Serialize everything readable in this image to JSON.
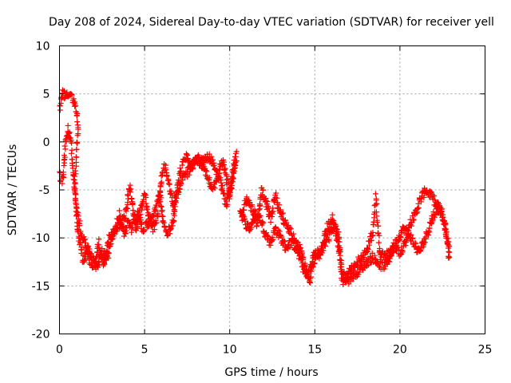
{
  "chart_data": {
    "type": "scatter",
    "title": "Day 208 of 2024, Sidereal Day-to-day VTEC variation (SDTVAR) for receiver yell",
    "xlabel": "GPS time / hours",
    "ylabel": "SDTVAR / TECUs",
    "xlim": [
      0,
      25
    ],
    "ylim": [
      -20,
      10
    ],
    "xticks": [
      0,
      5,
      10,
      15,
      20,
      25
    ],
    "yticks": [
      -20,
      -15,
      -10,
      -5,
      0,
      5,
      10
    ],
    "xtick_labels": [
      "0",
      "5",
      "10",
      "15",
      "20",
      "25"
    ],
    "ytick_labels": [
      "-20",
      "-15",
      "-10",
      "-5",
      "0",
      "5",
      "10"
    ],
    "grid": true,
    "marker": "+",
    "color": "#ff0000",
    "series": [
      {
        "name": "SDTVAR",
        "control_points": [
          [
            0.0,
            3.4
          ],
          [
            0.2,
            5.0
          ],
          [
            0.5,
            4.8
          ],
          [
            0.8,
            4.5
          ],
          [
            1.0,
            3.2
          ],
          [
            1.1,
            1.5
          ],
          [
            1.0,
            -1.0
          ],
          [
            0.9,
            -4.0
          ],
          [
            1.0,
            -8.0
          ],
          [
            1.1,
            -9.5
          ],
          [
            1.4,
            -12.5
          ],
          [
            1.6,
            -11.0
          ],
          [
            1.9,
            -11.8
          ],
          [
            2.1,
            -12.5
          ],
          [
            2.3,
            -10.5
          ],
          [
            2.6,
            -13.0
          ],
          [
            2.9,
            -10.0
          ],
          [
            3.2,
            -9.5
          ],
          [
            3.6,
            -8.5
          ],
          [
            3.9,
            -7.5
          ],
          [
            4.1,
            -4.5
          ],
          [
            4.3,
            -6.5
          ],
          [
            4.5,
            -9.0
          ],
          [
            4.8,
            -7.0
          ],
          [
            5.0,
            -5.5
          ],
          [
            5.2,
            -7.5
          ],
          [
            5.5,
            -9.0
          ],
          [
            5.8,
            -7.5
          ],
          [
            6.0,
            -3.5
          ],
          [
            6.2,
            -2.5
          ],
          [
            6.5,
            -5.0
          ],
          [
            6.7,
            -6.5
          ],
          [
            7.0,
            -4.0
          ],
          [
            7.2,
            -2.5
          ],
          [
            7.5,
            -1.5
          ],
          [
            7.8,
            -2.5
          ],
          [
            8.1,
            -1.5
          ],
          [
            8.4,
            -2.5
          ],
          [
            8.7,
            -3.5
          ],
          [
            9.0,
            -5.0
          ],
          [
            9.3,
            -3.5
          ],
          [
            9.6,
            -2.0
          ],
          [
            9.8,
            -3.5
          ],
          [
            10.0,
            -5.5
          ],
          [
            10.2,
            -3.0
          ],
          [
            10.4,
            -1.0
          ]
        ],
        "control_points_2": [
          [
            0.0,
            -3.5
          ],
          [
            0.2,
            -4.0
          ],
          [
            0.3,
            -1.0
          ],
          [
            0.5,
            1.5
          ],
          [
            0.7,
            -0.5
          ],
          [
            0.8,
            -3.5
          ],
          [
            1.0,
            -6.5
          ],
          [
            1.2,
            -9.0
          ],
          [
            1.5,
            -10.5
          ],
          [
            1.8,
            -12.5
          ],
          [
            2.2,
            -13.0
          ],
          [
            2.5,
            -11.5
          ],
          [
            2.8,
            -12.0
          ],
          [
            3.0,
            -10.5
          ],
          [
            3.3,
            -9.0
          ],
          [
            3.5,
            -7.5
          ],
          [
            3.8,
            -9.5
          ],
          [
            4.0,
            -8.5
          ],
          [
            4.2,
            -9.0
          ],
          [
            4.6,
            -7.5
          ],
          [
            4.9,
            -9.0
          ],
          [
            5.2,
            -8.5
          ],
          [
            5.5,
            -8.0
          ],
          [
            5.7,
            -6.5
          ],
          [
            5.9,
            -5.5
          ],
          [
            6.1,
            -8.5
          ],
          [
            6.3,
            -9.5
          ],
          [
            6.6,
            -9.0
          ],
          [
            6.9,
            -5.5
          ],
          [
            7.2,
            -4.0
          ],
          [
            7.6,
            -3.0
          ],
          [
            8.0,
            -2.0
          ],
          [
            8.4,
            -2.0
          ],
          [
            8.8,
            -1.5
          ],
          [
            9.2,
            -3.0
          ],
          [
            9.5,
            -4.5
          ],
          [
            9.8,
            -6.5
          ],
          [
            10.1,
            -4.5
          ],
          [
            10.4,
            -2.0
          ]
        ],
        "control_points_3": [
          [
            10.7,
            -7.5
          ],
          [
            11.0,
            -6.0
          ],
          [
            11.3,
            -7.0
          ],
          [
            11.6,
            -8.5
          ],
          [
            11.9,
            -5.0
          ],
          [
            12.1,
            -6.0
          ],
          [
            12.4,
            -8.0
          ],
          [
            12.7,
            -5.5
          ],
          [
            13.0,
            -7.5
          ],
          [
            13.3,
            -8.5
          ],
          [
            13.6,
            -9.5
          ],
          [
            13.9,
            -10.5
          ],
          [
            14.2,
            -11.5
          ],
          [
            14.5,
            -13.5
          ],
          [
            14.7,
            -14.5
          ],
          [
            14.9,
            -12.0
          ],
          [
            15.2,
            -11.5
          ],
          [
            15.5,
            -11.0
          ],
          [
            15.8,
            -10.0
          ],
          [
            16.1,
            -8.5
          ],
          [
            16.4,
            -9.5
          ],
          [
            16.6,
            -14.5
          ],
          [
            16.9,
            -14.0
          ],
          [
            17.2,
            -13.0
          ],
          [
            17.5,
            -12.5
          ],
          [
            17.8,
            -12.0
          ],
          [
            18.1,
            -11.0
          ],
          [
            18.4,
            -9.5
          ],
          [
            18.6,
            -5.8
          ],
          [
            18.8,
            -11.5
          ],
          [
            19.1,
            -12.0
          ],
          [
            19.4,
            -11.5
          ],
          [
            19.7,
            -11.0
          ],
          [
            20.0,
            -11.5
          ],
          [
            20.3,
            -10.5
          ],
          [
            20.6,
            -8.5
          ],
          [
            20.9,
            -7.5
          ],
          [
            21.2,
            -6.0
          ],
          [
            21.5,
            -5.0
          ],
          [
            21.8,
            -5.5
          ],
          [
            22.1,
            -6.5
          ],
          [
            22.4,
            -7.0
          ],
          [
            22.7,
            -9.5
          ],
          [
            22.9,
            -12.0
          ]
        ],
        "control_points_4": [
          [
            10.6,
            -7.0
          ],
          [
            10.9,
            -8.5
          ],
          [
            11.2,
            -9.0
          ],
          [
            11.5,
            -7.5
          ],
          [
            11.8,
            -8.0
          ],
          [
            12.1,
            -9.5
          ],
          [
            12.4,
            -10.5
          ],
          [
            12.7,
            -9.0
          ],
          [
            13.0,
            -10.0
          ],
          [
            13.3,
            -11.0
          ],
          [
            13.6,
            -10.5
          ],
          [
            13.9,
            -11.0
          ],
          [
            14.2,
            -12.5
          ],
          [
            14.5,
            -14.0
          ],
          [
            14.8,
            -13.0
          ],
          [
            15.1,
            -12.0
          ],
          [
            15.4,
            -11.5
          ],
          [
            15.7,
            -9.0
          ],
          [
            16.0,
            -8.0
          ],
          [
            16.3,
            -10.0
          ],
          [
            16.6,
            -13.5
          ],
          [
            16.9,
            -14.5
          ],
          [
            17.2,
            -14.0
          ],
          [
            17.5,
            -13.5
          ],
          [
            17.8,
            -13.0
          ],
          [
            18.1,
            -12.5
          ],
          [
            18.4,
            -12.0
          ],
          [
            18.7,
            -12.5
          ],
          [
            19.0,
            -13.0
          ],
          [
            19.3,
            -12.5
          ],
          [
            19.6,
            -11.0
          ],
          [
            19.9,
            -10.0
          ],
          [
            20.2,
            -9.0
          ],
          [
            20.5,
            -9.5
          ],
          [
            20.8,
            -10.5
          ],
          [
            21.1,
            -11.5
          ],
          [
            21.4,
            -10.5
          ],
          [
            21.7,
            -9.0
          ],
          [
            22.0,
            -7.5
          ],
          [
            22.3,
            -7.0
          ],
          [
            22.6,
            -8.0
          ],
          [
            22.9,
            -11.5
          ]
        ]
      }
    ]
  }
}
